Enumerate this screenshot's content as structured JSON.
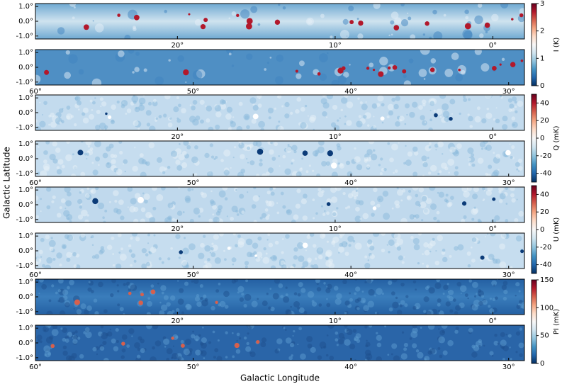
{
  "chart_data": {
    "type": "map-grid",
    "xlabel": "Galactic Longitude",
    "ylabel": "Galactic Latitude",
    "panels": [
      {
        "type": "map",
        "xlim": [
          29,
          -2
        ],
        "ylim": [
          -1.2,
          1.2
        ],
        "xticks": [
          {
            "value": 20,
            "label": "20°"
          },
          {
            "value": 10,
            "label": "10°"
          },
          {
            "value": 0,
            "label": "0°"
          }
        ],
        "yticks": [
          {
            "value": 1,
            "label": "1.0°"
          },
          {
            "value": 0,
            "label": "0.0°"
          },
          {
            "value": -1,
            "label": "-1.0°"
          }
        ]
      },
      {
        "type": "map",
        "xlim": [
          60,
          29
        ],
        "ylim": [
          -1.2,
          1.2
        ],
        "xticks": [
          {
            "value": 60,
            "label": "60°"
          },
          {
            "value": 50,
            "label": "50°"
          },
          {
            "value": 40,
            "label": "40°"
          },
          {
            "value": 30,
            "label": "30°"
          }
        ],
        "yticks": [
          {
            "value": 1,
            "label": "1.0°"
          },
          {
            "value": 0,
            "label": "0.0°"
          },
          {
            "value": -1,
            "label": "-1.0°"
          }
        ]
      },
      {
        "type": "map",
        "xlim": [
          29,
          -2
        ],
        "ylim": [
          -1.2,
          1.2
        ],
        "xticks": [
          {
            "value": 20,
            "label": "20°"
          },
          {
            "value": 10,
            "label": "10°"
          },
          {
            "value": 0,
            "label": "0°"
          }
        ],
        "yticks": [
          {
            "value": 1,
            "label": "1.0°"
          },
          {
            "value": 0,
            "label": "0.0°"
          },
          {
            "value": -1,
            "label": "-1.0°"
          }
        ]
      },
      {
        "type": "map",
        "xlim": [
          60,
          29
        ],
        "ylim": [
          -1.2,
          1.2
        ],
        "xticks": [
          {
            "value": 60,
            "label": "60°"
          },
          {
            "value": 50,
            "label": "50°"
          },
          {
            "value": 40,
            "label": "40°"
          },
          {
            "value": 30,
            "label": "30°"
          }
        ],
        "yticks": [
          {
            "value": 1,
            "label": "1.0°"
          },
          {
            "value": 0,
            "label": "0.0°"
          },
          {
            "value": -1,
            "label": "-1.0°"
          }
        ]
      },
      {
        "type": "map",
        "xlim": [
          29,
          -2
        ],
        "ylim": [
          -1.2,
          1.2
        ],
        "xticks": [
          {
            "value": 20,
            "label": "20°"
          },
          {
            "value": 10,
            "label": "10°"
          },
          {
            "value": 0,
            "label": "0°"
          }
        ],
        "yticks": [
          {
            "value": 1,
            "label": "1.0°"
          },
          {
            "value": 0,
            "label": "0.0°"
          },
          {
            "value": -1,
            "label": "-1.0°"
          }
        ]
      },
      {
        "type": "map",
        "xlim": [
          60,
          29
        ],
        "ylim": [
          -1.2,
          1.2
        ],
        "xticks": [
          {
            "value": 60,
            "label": "60°"
          },
          {
            "value": 50,
            "label": "50°"
          },
          {
            "value": 40,
            "label": "40°"
          },
          {
            "value": 30,
            "label": "30°"
          }
        ],
        "yticks": [
          {
            "value": 1,
            "label": "1.0°"
          },
          {
            "value": 0,
            "label": "0.0°"
          },
          {
            "value": -1,
            "label": "-1.0°"
          }
        ]
      },
      {
        "type": "map",
        "xlim": [
          29,
          -2
        ],
        "ylim": [
          -1.2,
          1.2
        ],
        "xticks": [
          {
            "value": 20,
            "label": "20°"
          },
          {
            "value": 10,
            "label": "10°"
          },
          {
            "value": 0,
            "label": "0°"
          }
        ],
        "yticks": [
          {
            "value": 1,
            "label": "1.0°"
          },
          {
            "value": 0,
            "label": "0.0°"
          },
          {
            "value": -1,
            "label": "-1.0°"
          }
        ]
      },
      {
        "type": "map",
        "xlim": [
          60,
          29
        ],
        "ylim": [
          -1.2,
          1.2
        ],
        "xticks": [
          {
            "value": 60,
            "label": "60°"
          },
          {
            "value": 50,
            "label": "50°"
          },
          {
            "value": 40,
            "label": "40°"
          },
          {
            "value": 30,
            "label": "30°"
          }
        ],
        "yticks": [
          {
            "value": 1,
            "label": "1.0°"
          },
          {
            "value": 0,
            "label": "0.0°"
          },
          {
            "value": -1,
            "label": "-1.0°"
          }
        ]
      }
    ],
    "colorbars": [
      {
        "label": "I (K)",
        "ylim": [
          0,
          3
        ],
        "yticks": [
          0,
          1,
          2,
          3
        ]
      },
      {
        "label": "Q (mK)",
        "ylim": [
          -50,
          50
        ],
        "yticks": [
          -40,
          -20,
          0,
          20,
          40
        ]
      },
      {
        "label": "U (mK)",
        "ylim": [
          -50,
          50
        ],
        "yticks": [
          -40,
          -20,
          0,
          20,
          40
        ]
      },
      {
        "label": "PI (mK)",
        "ylim": [
          0,
          150
        ],
        "yticks": [
          0,
          50,
          100,
          150
        ]
      }
    ]
  }
}
